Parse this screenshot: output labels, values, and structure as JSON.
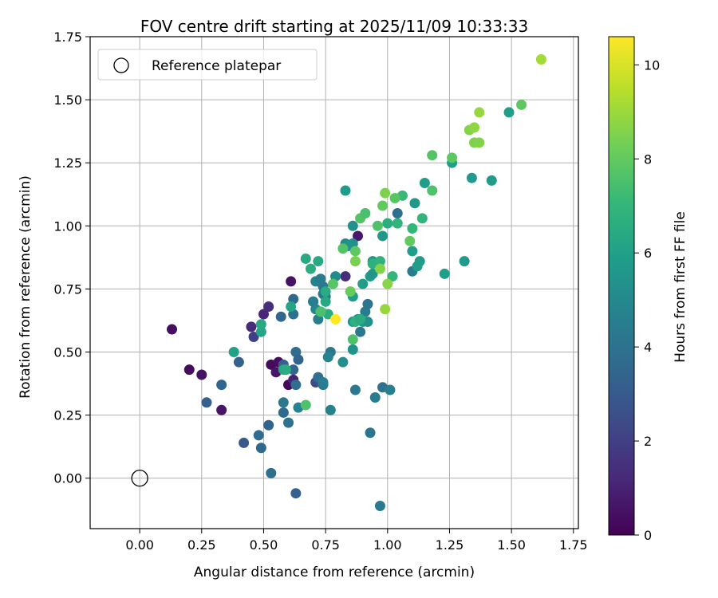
{
  "chart_data": {
    "type": "scatter",
    "title": "FOV centre drift starting at 2025/11/09 10:33:33",
    "xlabel": "Angular distance from reference (arcmin)",
    "ylabel": "Rotation from reference (arcmin)",
    "xlim": [
      -0.2,
      1.77
    ],
    "ylim": [
      -0.2,
      1.75
    ],
    "xticks": [
      "0.00",
      "0.25",
      "0.50",
      "0.75",
      "1.00",
      "1.25",
      "1.50",
      "1.75"
    ],
    "yticks": [
      "0.00",
      "0.25",
      "0.50",
      "0.75",
      "1.00",
      "1.25",
      "1.50",
      "1.75"
    ],
    "grid": true,
    "legend": {
      "position": "top-left",
      "entries": [
        {
          "label": "Reference platepar",
          "marker": "open-circle"
        }
      ]
    },
    "reference_point": {
      "x": 0.0,
      "y": 0.0,
      "label": "Reference platepar"
    },
    "colorbar": {
      "label": "Hours from first FF file",
      "min": 0,
      "max": 10.6,
      "ticks": [
        "0",
        "2",
        "4",
        "6",
        "8",
        "10"
      ],
      "colormap": "viridis",
      "stops": [
        "#440154",
        "#482878",
        "#3e4a89",
        "#31688e",
        "#26828e",
        "#1f9e89",
        "#35b779",
        "#6ece58",
        "#b5de2b",
        "#fde725"
      ]
    },
    "points": [
      {
        "x": 0.13,
        "y": 0.59,
        "c": 0.4
      },
      {
        "x": 0.2,
        "y": 0.43,
        "c": 0.3
      },
      {
        "x": 0.25,
        "y": 0.41,
        "c": 0.5
      },
      {
        "x": 0.33,
        "y": 0.27,
        "c": 0.6
      },
      {
        "x": 0.45,
        "y": 0.6,
        "c": 1.3
      },
      {
        "x": 0.5,
        "y": 0.65,
        "c": 1.1
      },
      {
        "x": 0.52,
        "y": 0.68,
        "c": 1.4
      },
      {
        "x": 0.46,
        "y": 0.56,
        "c": 2.0
      },
      {
        "x": 0.53,
        "y": 0.45,
        "c": 0.3
      },
      {
        "x": 0.56,
        "y": 0.46,
        "c": 0.4
      },
      {
        "x": 0.55,
        "y": 0.42,
        "c": 0.6
      },
      {
        "x": 0.6,
        "y": 0.37,
        "c": 0.2
      },
      {
        "x": 0.61,
        "y": 0.78,
        "c": 0.5
      },
      {
        "x": 0.62,
        "y": 0.39,
        "c": 1.0
      },
      {
        "x": 0.88,
        "y": 0.96,
        "c": 0.8
      },
      {
        "x": 0.83,
        "y": 0.8,
        "c": 1.4
      },
      {
        "x": 0.72,
        "y": 0.78,
        "c": 2.2
      },
      {
        "x": 0.7,
        "y": 0.7,
        "c": 2.8
      },
      {
        "x": 0.71,
        "y": 0.38,
        "c": 2.5
      },
      {
        "x": 0.42,
        "y": 0.14,
        "c": 3.0
      },
      {
        "x": 0.27,
        "y": 0.3,
        "c": 3.2
      },
      {
        "x": 0.33,
        "y": 0.37,
        "c": 3.4
      },
      {
        "x": 0.4,
        "y": 0.46,
        "c": 3.3
      },
      {
        "x": 0.49,
        "y": 0.12,
        "c": 3.6
      },
      {
        "x": 0.48,
        "y": 0.17,
        "c": 3.7
      },
      {
        "x": 0.52,
        "y": 0.21,
        "c": 3.4
      },
      {
        "x": 0.53,
        "y": 0.02,
        "c": 3.9
      },
      {
        "x": 0.57,
        "y": 0.64,
        "c": 3.5
      },
      {
        "x": 0.58,
        "y": 0.26,
        "c": 3.6
      },
      {
        "x": 0.58,
        "y": 0.45,
        "c": 3.2
      },
      {
        "x": 0.6,
        "y": 0.22,
        "c": 4.0
      },
      {
        "x": 0.62,
        "y": 0.43,
        "c": 3.5
      },
      {
        "x": 0.63,
        "y": 0.37,
        "c": 3.8
      },
      {
        "x": 0.63,
        "y": 0.5,
        "c": 3.7
      },
      {
        "x": 0.63,
        "y": -0.06,
        "c": 3.3
      },
      {
        "x": 0.62,
        "y": 0.65,
        "c": 3.9
      },
      {
        "x": 0.62,
        "y": 0.71,
        "c": 3.6
      },
      {
        "x": 0.64,
        "y": 0.47,
        "c": 3.4
      },
      {
        "x": 0.58,
        "y": 0.3,
        "c": 4.2
      },
      {
        "x": 0.64,
        "y": 0.28,
        "c": 4.7
      },
      {
        "x": 0.72,
        "y": 0.4,
        "c": 3.9
      },
      {
        "x": 0.74,
        "y": 0.37,
        "c": 4.3
      },
      {
        "x": 0.74,
        "y": 0.38,
        "c": 4.5
      },
      {
        "x": 0.77,
        "y": 0.5,
        "c": 4.2
      },
      {
        "x": 0.76,
        "y": 0.48,
        "c": 4.8
      },
      {
        "x": 0.77,
        "y": 0.27,
        "c": 4.6
      },
      {
        "x": 0.72,
        "y": 0.63,
        "c": 4.5
      },
      {
        "x": 0.74,
        "y": 0.73,
        "c": 4.4
      },
      {
        "x": 0.74,
        "y": 0.76,
        "c": 4.2
      },
      {
        "x": 0.71,
        "y": 0.67,
        "c": 4.9
      },
      {
        "x": 0.7,
        "y": 0.7,
        "c": 4.5
      },
      {
        "x": 0.71,
        "y": 0.78,
        "c": 4.7
      },
      {
        "x": 0.73,
        "y": 0.79,
        "c": 4.4
      },
      {
        "x": 0.75,
        "y": 0.72,
        "c": 4.0
      },
      {
        "x": 0.87,
        "y": 0.35,
        "c": 4.3
      },
      {
        "x": 0.95,
        "y": 0.32,
        "c": 4.4
      },
      {
        "x": 0.98,
        "y": 0.36,
        "c": 4.0
      },
      {
        "x": 1.01,
        "y": 0.35,
        "c": 4.6
      },
      {
        "x": 0.93,
        "y": 0.18,
        "c": 4.1
      },
      {
        "x": 0.97,
        "y": -0.11,
        "c": 4.3
      },
      {
        "x": 0.89,
        "y": 0.58,
        "c": 4.2
      },
      {
        "x": 0.91,
        "y": 0.66,
        "c": 4.4
      },
      {
        "x": 0.92,
        "y": 0.69,
        "c": 4.1
      },
      {
        "x": 1.04,
        "y": 1.05,
        "c": 3.9
      },
      {
        "x": 1.1,
        "y": 0.82,
        "c": 4.4
      },
      {
        "x": 0.83,
        "y": 0.93,
        "c": 5.0
      },
      {
        "x": 0.86,
        "y": 0.93,
        "c": 5.2
      },
      {
        "x": 0.86,
        "y": 1.0,
        "c": 5.3
      },
      {
        "x": 0.84,
        "y": 0.92,
        "c": 5.4
      },
      {
        "x": 0.79,
        "y": 0.8,
        "c": 5.1
      },
      {
        "x": 0.82,
        "y": 0.46,
        "c": 5.2
      },
      {
        "x": 0.86,
        "y": 0.51,
        "c": 5.4
      },
      {
        "x": 0.86,
        "y": 0.62,
        "c": 5.6
      },
      {
        "x": 0.88,
        "y": 0.63,
        "c": 5.5
      },
      {
        "x": 0.9,
        "y": 0.62,
        "c": 5.7
      },
      {
        "x": 0.92,
        "y": 0.62,
        "c": 5.3
      },
      {
        "x": 0.9,
        "y": 0.77,
        "c": 5.8
      },
      {
        "x": 0.93,
        "y": 0.8,
        "c": 5.7
      },
      {
        "x": 0.86,
        "y": 0.72,
        "c": 5.9
      },
      {
        "x": 0.94,
        "y": 0.86,
        "c": 5.6
      },
      {
        "x": 0.94,
        "y": 0.81,
        "c": 5.5
      },
      {
        "x": 0.98,
        "y": 0.96,
        "c": 5.6
      },
      {
        "x": 0.83,
        "y": 1.14,
        "c": 5.7
      },
      {
        "x": 1.11,
        "y": 1.09,
        "c": 5.6
      },
      {
        "x": 1.12,
        "y": 0.84,
        "c": 5.9
      },
      {
        "x": 1.13,
        "y": 0.86,
        "c": 5.8
      },
      {
        "x": 1.23,
        "y": 0.81,
        "c": 5.9
      },
      {
        "x": 1.31,
        "y": 0.86,
        "c": 5.7
      },
      {
        "x": 1.1,
        "y": 0.9,
        "c": 5.9
      },
      {
        "x": 1.15,
        "y": 1.17,
        "c": 5.9
      },
      {
        "x": 1.26,
        "y": 1.25,
        "c": 5.9
      },
      {
        "x": 1.34,
        "y": 1.19,
        "c": 5.8
      },
      {
        "x": 1.42,
        "y": 1.18,
        "c": 5.8
      },
      {
        "x": 1.49,
        "y": 1.45,
        "c": 5.9
      },
      {
        "x": 0.38,
        "y": 0.5,
        "c": 6.1
      },
      {
        "x": 0.49,
        "y": 0.58,
        "c": 6.2
      },
      {
        "x": 0.49,
        "y": 0.61,
        "c": 6.4
      },
      {
        "x": 0.58,
        "y": 0.43,
        "c": 6.3
      },
      {
        "x": 0.59,
        "y": 0.43,
        "c": 6.5
      },
      {
        "x": 0.61,
        "y": 0.68,
        "c": 6.2
      },
      {
        "x": 0.67,
        "y": 0.87,
        "c": 6.4
      },
      {
        "x": 0.69,
        "y": 0.83,
        "c": 6.6
      },
      {
        "x": 0.72,
        "y": 0.86,
        "c": 6.4
      },
      {
        "x": 0.73,
        "y": 0.66,
        "c": 6.7
      },
      {
        "x": 0.75,
        "y": 0.74,
        "c": 6.5
      },
      {
        "x": 0.75,
        "y": 0.7,
        "c": 6.3
      },
      {
        "x": 0.76,
        "y": 0.65,
        "c": 6.6
      },
      {
        "x": 0.87,
        "y": 0.62,
        "c": 6.8
      },
      {
        "x": 0.89,
        "y": 0.63,
        "c": 6.5
      },
      {
        "x": 0.94,
        "y": 0.85,
        "c": 6.7
      },
      {
        "x": 0.97,
        "y": 0.86,
        "c": 6.8
      },
      {
        "x": 1.0,
        "y": 1.01,
        "c": 6.6
      },
      {
        "x": 1.02,
        "y": 0.8,
        "c": 7.0
      },
      {
        "x": 1.04,
        "y": 1.01,
        "c": 6.9
      },
      {
        "x": 1.06,
        "y": 1.12,
        "c": 7.1
      },
      {
        "x": 1.1,
        "y": 0.99,
        "c": 7.0
      },
      {
        "x": 1.14,
        "y": 1.03,
        "c": 6.9
      },
      {
        "x": 0.67,
        "y": 0.29,
        "c": 7.6
      },
      {
        "x": 0.73,
        "y": 0.66,
        "c": 7.5
      },
      {
        "x": 0.78,
        "y": 0.77,
        "c": 7.8
      },
      {
        "x": 0.82,
        "y": 0.91,
        "c": 7.7
      },
      {
        "x": 0.86,
        "y": 0.55,
        "c": 7.6
      },
      {
        "x": 0.87,
        "y": 0.9,
        "c": 7.9
      },
      {
        "x": 0.89,
        "y": 1.03,
        "c": 7.7
      },
      {
        "x": 0.91,
        "y": 1.05,
        "c": 7.5
      },
      {
        "x": 0.96,
        "y": 1.0,
        "c": 7.6
      },
      {
        "x": 0.98,
        "y": 1.08,
        "c": 8.0
      },
      {
        "x": 1.03,
        "y": 1.11,
        "c": 7.8
      },
      {
        "x": 1.09,
        "y": 0.94,
        "c": 8.0
      },
      {
        "x": 1.18,
        "y": 1.14,
        "c": 7.6
      },
      {
        "x": 1.18,
        "y": 1.28,
        "c": 7.7
      },
      {
        "x": 1.26,
        "y": 1.27,
        "c": 7.9
      },
      {
        "x": 1.54,
        "y": 1.48,
        "c": 7.9
      },
      {
        "x": 0.85,
        "y": 0.74,
        "c": 8.1
      },
      {
        "x": 0.87,
        "y": 0.86,
        "c": 8.4
      },
      {
        "x": 0.97,
        "y": 0.83,
        "c": 8.6
      },
      {
        "x": 0.99,
        "y": 0.67,
        "c": 8.9
      },
      {
        "x": 1.0,
        "y": 0.77,
        "c": 8.7
      },
      {
        "x": 0.99,
        "y": 1.13,
        "c": 8.5
      },
      {
        "x": 1.33,
        "y": 1.38,
        "c": 8.6
      },
      {
        "x": 1.35,
        "y": 1.39,
        "c": 8.8
      },
      {
        "x": 1.35,
        "y": 1.33,
        "c": 8.5
      },
      {
        "x": 1.37,
        "y": 1.33,
        "c": 8.6
      },
      {
        "x": 1.37,
        "y": 1.45,
        "c": 8.9
      },
      {
        "x": 1.62,
        "y": 1.66,
        "c": 9.1
      },
      {
        "x": 0.79,
        "y": 0.63,
        "c": 10.6
      }
    ]
  }
}
